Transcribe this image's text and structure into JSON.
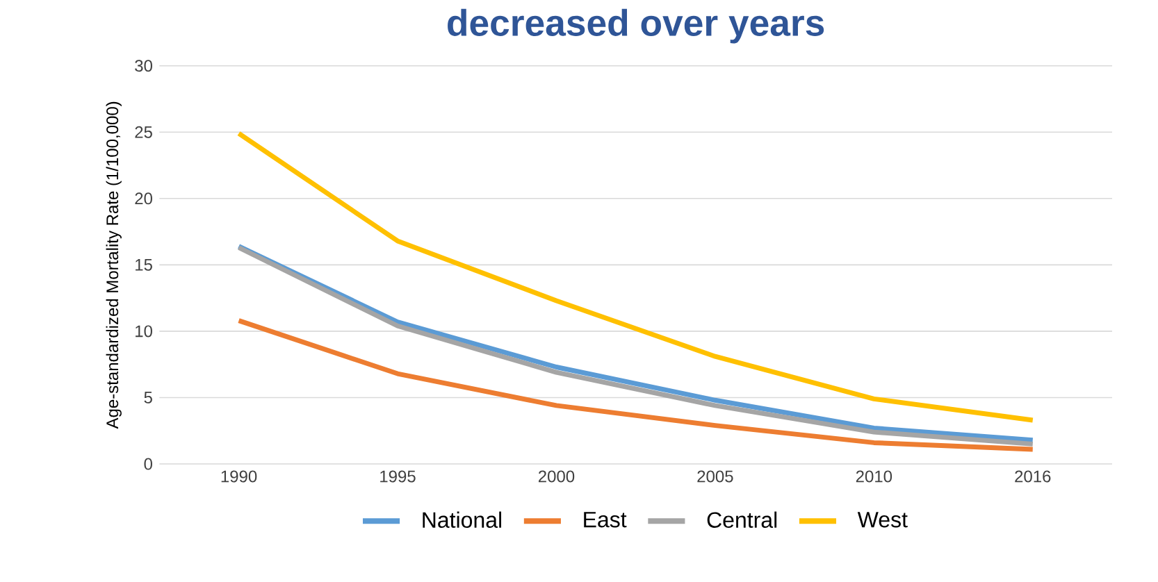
{
  "chart_data": {
    "type": "line",
    "title": "decreased over years",
    "ylabel": "Age-standardized Mortality Rate (1/100,000)",
    "categories": [
      "1990",
      "1995",
      "2000",
      "2005",
      "2010",
      "2016"
    ],
    "series": [
      {
        "name": "National",
        "color": "#5b9bd5",
        "values": [
          16.4,
          10.7,
          7.3,
          4.8,
          2.7,
          1.8
        ]
      },
      {
        "name": "East",
        "color": "#ed7d31",
        "values": [
          10.8,
          6.8,
          4.4,
          2.9,
          1.6,
          1.1
        ]
      },
      {
        "name": "Central",
        "color": "#a5a5a5",
        "values": [
          16.3,
          10.4,
          6.9,
          4.4,
          2.4,
          1.5
        ]
      },
      {
        "name": "West",
        "color": "#ffc000",
        "values": [
          24.9,
          16.8,
          12.3,
          8.1,
          4.9,
          3.3
        ]
      }
    ],
    "ylim": [
      0,
      30
    ],
    "yticks": [
      0,
      5,
      10,
      15,
      20,
      25,
      30
    ],
    "grid": "y",
    "legend": "bottom",
    "marker": "none",
    "line_style": "solid"
  }
}
